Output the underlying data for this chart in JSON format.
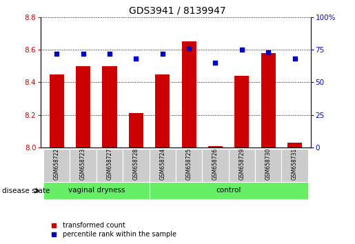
{
  "title": "GDS3941 / 8139947",
  "samples": [
    "GSM658722",
    "GSM658723",
    "GSM658727",
    "GSM658728",
    "GSM658724",
    "GSM658725",
    "GSM658726",
    "GSM658729",
    "GSM658730",
    "GSM658731"
  ],
  "transformed_count": [
    8.45,
    8.5,
    8.5,
    8.21,
    8.45,
    8.65,
    8.01,
    8.44,
    8.58,
    8.03
  ],
  "percentile_rank": [
    72,
    72,
    72,
    68,
    72,
    76,
    65,
    75,
    73,
    68
  ],
  "ylim_left": [
    8.0,
    8.8
  ],
  "ylim_right": [
    0,
    100
  ],
  "yticks_left": [
    8.0,
    8.2,
    8.4,
    8.6,
    8.8
  ],
  "yticks_right": [
    0,
    25,
    50,
    75,
    100
  ],
  "bar_color": "#cc0000",
  "dot_color": "#0000cc",
  "bar_bottom": 8.0,
  "groups": [
    {
      "label": "vaginal dryness",
      "indices": [
        0,
        1,
        2,
        3
      ],
      "n": 4
    },
    {
      "label": "control",
      "indices": [
        4,
        5,
        6,
        7,
        8,
        9
      ],
      "n": 6
    }
  ],
  "group_color": "#66ee66",
  "xlabel_label": "disease state",
  "label_area_color": "#cccccc",
  "legend_items": [
    {
      "label": "transformed count",
      "color": "#cc0000"
    },
    {
      "label": "percentile rank within the sample",
      "color": "#0000cc"
    }
  ]
}
